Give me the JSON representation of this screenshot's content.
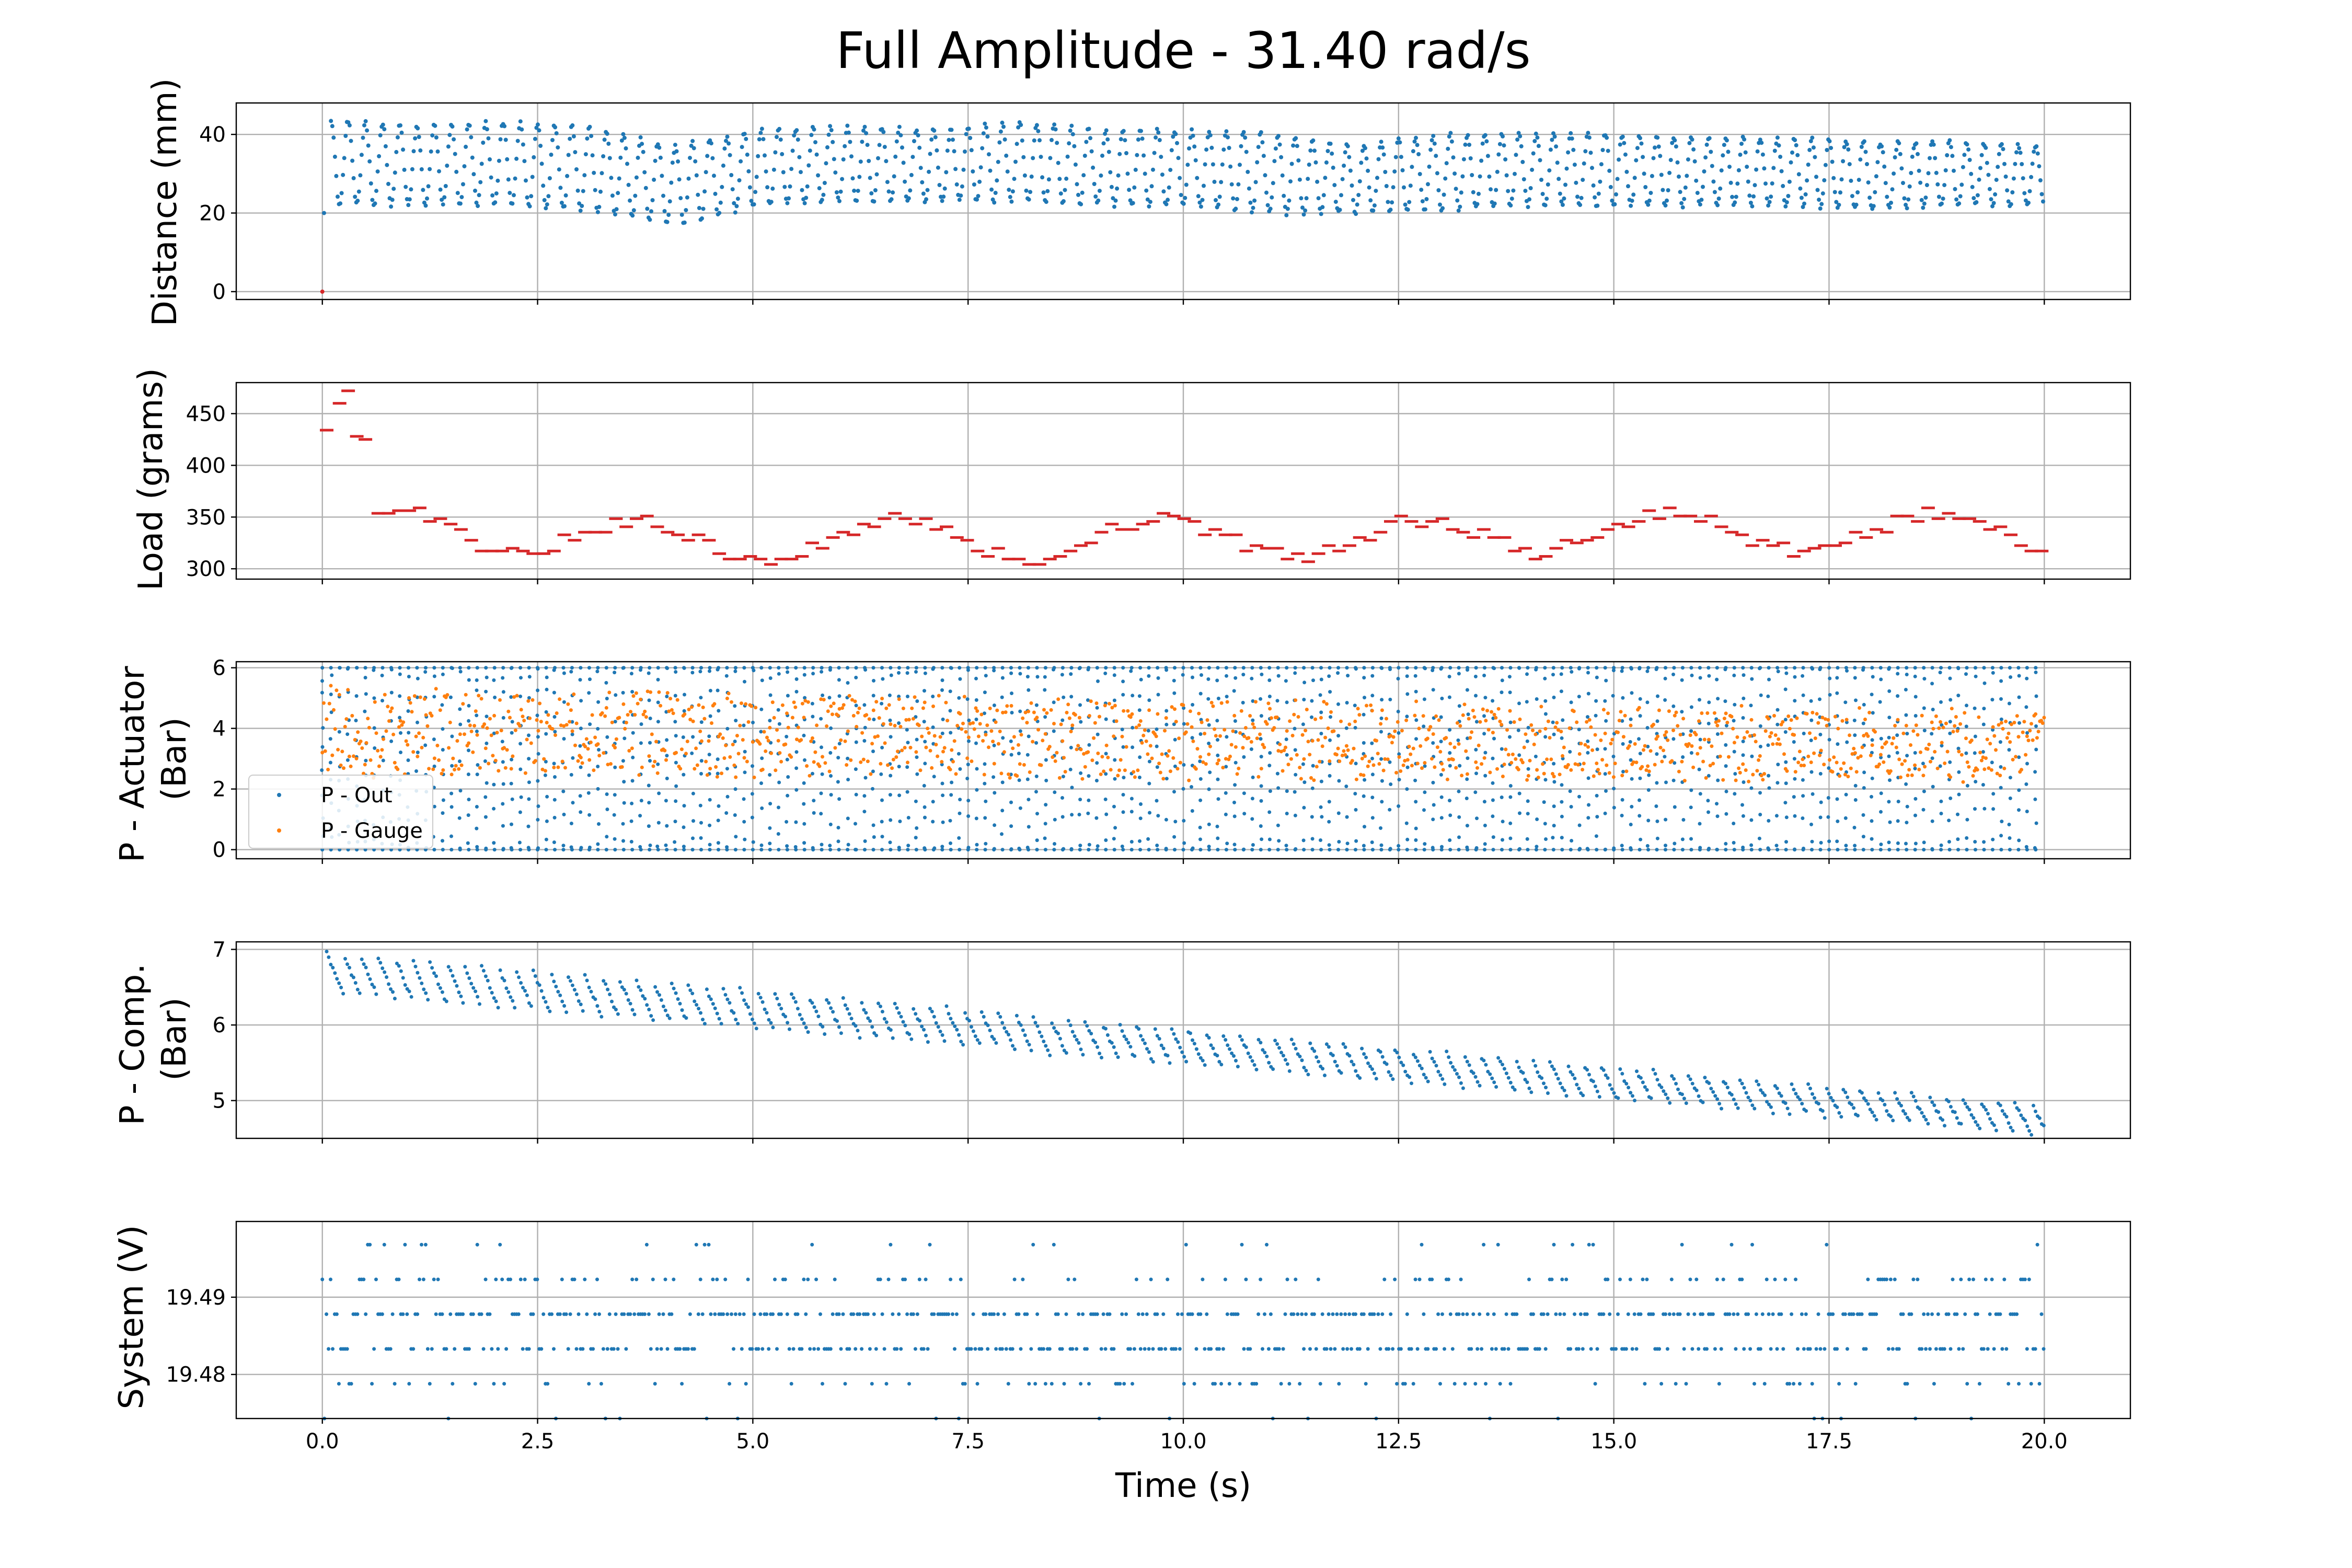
{
  "figure": {
    "title": "Full Amplitude - 31.40 rad/s",
    "xlabel": "Time (s)",
    "x_ticks": [
      "0.0",
      "2.5",
      "5.0",
      "7.5",
      "10.0",
      "12.5",
      "15.0",
      "17.5",
      "20.0"
    ]
  },
  "chart_data": [
    {
      "type": "scatter",
      "ylabel": "Distance (mm)",
      "y_ticks": [
        "0",
        "20",
        "40"
      ],
      "xlim": [
        -1,
        21
      ],
      "ylim": [
        -2,
        48
      ],
      "grid": true,
      "colors": {
        "series": "#1f77b4",
        "start_marker": "#d62728"
      },
      "series": [
        {
          "pattern": "oscillation",
          "x_range": [
            0.1,
            20.0
          ],
          "peak": [
            44,
            42,
            43,
            42,
            37,
            41,
            42,
            41,
            43,
            41,
            41,
            40,
            37,
            40,
            40,
            40,
            39,
            39,
            38,
            38,
            37
          ],
          "trough": [
            22,
            22,
            22,
            21,
            17,
            22,
            23,
            23,
            23,
            22,
            22,
            20,
            20,
            21,
            22,
            22,
            22,
            22,
            21,
            22,
            22
          ],
          "period_s": 0.2,
          "initial_points": [
            {
              "x": 0.0,
              "y": 0
            },
            {
              "x": 0.02,
              "y": 20
            }
          ]
        }
      ]
    },
    {
      "type": "scatter",
      "ylabel": "Load (grams)",
      "y_ticks": [
        "300",
        "350",
        "400",
        "450"
      ],
      "xlim": [
        -1,
        21
      ],
      "ylim": [
        290,
        480
      ],
      "grid": true,
      "colors": {
        "series": "#d62728"
      },
      "series": [
        {
          "pattern": "steps",
          "initial_points": [
            [
              0.05,
              434
            ],
            [
              0.2,
              460
            ],
            [
              0.3,
              472
            ],
            [
              0.4,
              428
            ],
            [
              0.5,
              425
            ]
          ],
          "segment_duration_s": 0.12,
          "center": [
            340,
            338,
            333,
            328,
            322,
            330,
            332,
            328,
            326,
            330,
            332,
            330,
            326,
            332,
            335,
            336,
            334,
            336,
            333,
            336,
            337
          ],
          "amplitude": 18
        }
      ]
    },
    {
      "type": "scatter",
      "ylabel": "P - Actuator\n(Bar)",
      "y_ticks": [
        "0",
        "2",
        "4",
        "6"
      ],
      "xlim": [
        -1,
        21
      ],
      "ylim": [
        -0.3,
        6.2
      ],
      "grid": true,
      "legend": {
        "loc": "lower left",
        "entries": [
          "P - Out",
          "P - Gauge"
        ]
      },
      "series": [
        {
          "name": "P - Out",
          "color": "#1f77b4",
          "pattern": "sweep",
          "x_range": [
            0.0,
            20.0
          ],
          "y_range": [
            0,
            6
          ],
          "period_s": 0.2
        },
        {
          "name": "P - Gauge",
          "color": "#ff7f0e",
          "pattern": "oscillation",
          "x_range": [
            0.0,
            20.0
          ],
          "peak_start": 5.3,
          "peak_end": 4.5,
          "trough_start": 2.5,
          "trough_end": 2.3,
          "period_s": 0.2
        }
      ]
    },
    {
      "type": "scatter",
      "ylabel": "P - Comp.\n(Bar)",
      "y_ticks": [
        "5",
        "6",
        "7"
      ],
      "xlim": [
        -1,
        21
      ],
      "ylim": [
        4.5,
        7.1
      ],
      "grid": true,
      "colors": {
        "series": "#1f77b4"
      },
      "series": [
        {
          "pattern": "decay_band",
          "x_range": [
            0.05,
            20.0
          ],
          "upper_start": 6.95,
          "upper_end": 4.95,
          "lower_start": 6.4,
          "lower_end": 4.55,
          "period_s": 0.2
        }
      ]
    },
    {
      "type": "scatter",
      "ylabel": "System (V)",
      "y_ticks": [
        "19.48",
        "19.49"
      ],
      "xlim": [
        -1,
        21
      ],
      "ylim": [
        19.4743,
        19.4998
      ],
      "grid": true,
      "colors": {
        "series": "#1f77b4"
      },
      "series": [
        {
          "pattern": "quantized_noise",
          "x_range": [
            0.0,
            20.0
          ],
          "levels": [
            19.4743,
            19.4788,
            19.4833,
            19.4878,
            19.4923,
            19.4968
          ],
          "level_weights": [
            0.03,
            0.12,
            0.34,
            0.34,
            0.14,
            0.03
          ]
        }
      ]
    }
  ]
}
